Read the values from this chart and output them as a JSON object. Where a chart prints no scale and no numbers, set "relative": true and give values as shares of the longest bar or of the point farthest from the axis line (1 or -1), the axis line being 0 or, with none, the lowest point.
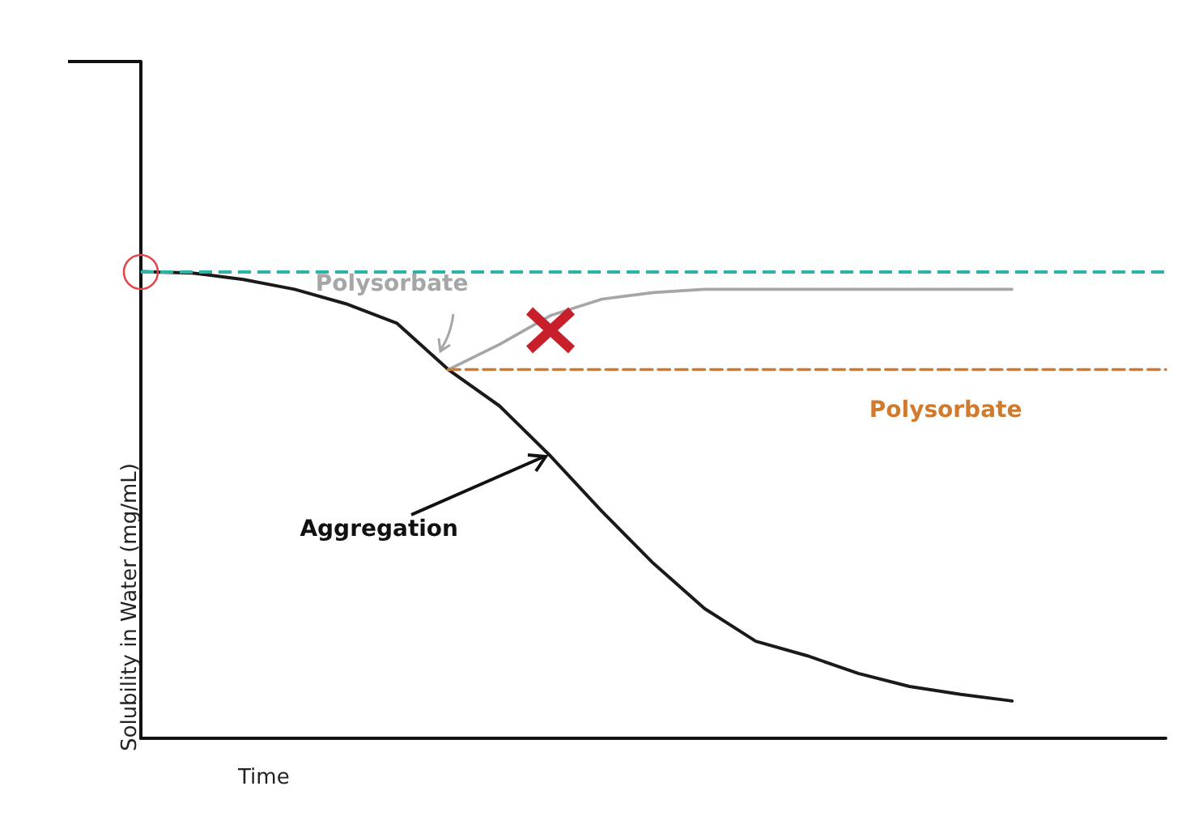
{
  "chart_data": {
    "type": "line",
    "relative": true,
    "xlabel": "Time",
    "ylabel": "Solubility in Water (mg/mL)",
    "categories": [
      null,
      null,
      null,
      null,
      null,
      null,
      null,
      null,
      null,
      null,
      null,
      null,
      null,
      null,
      null,
      null,
      null,
      null,
      null,
      null,
      null
    ],
    "series": [
      {
        "color": "#1a1a1a",
        "values": [
          1.0,
          0.997,
          0.983,
          0.962,
          0.931,
          0.889,
          0.79,
          0.712,
          0.604,
          0.486,
          0.375,
          0.278,
          0.208,
          0.177,
          0.139,
          0.111,
          0.094,
          0.08,
          null,
          null,
          null
        ]
      },
      {
        "name": "Polysorbate",
        "color": "#a6a6a6",
        "values": [
          null,
          null,
          null,
          null,
          null,
          null,
          0.79,
          0.844,
          0.906,
          0.941,
          0.955,
          0.962,
          0.962,
          0.962,
          0.962,
          0.962,
          0.962,
          0.962,
          null,
          null,
          null
        ]
      },
      {
        "name": "Polysorbate",
        "color": "#d07a2e",
        "line_style": "dashed",
        "values": [
          null,
          null,
          null,
          null,
          null,
          null,
          0.79,
          0.79,
          0.79,
          0.79,
          0.79,
          0.79,
          0.79,
          0.79,
          0.79,
          0.79,
          0.79,
          0.79,
          0.79,
          0.79,
          0.79
        ]
      }
    ],
    "ref_lines": [
      {
        "axis": "y",
        "value": 1.0,
        "color": "#2ab3a6",
        "line_style": "dashed"
      }
    ],
    "annotations": [
      "Aggregation"
    ],
    "grid": false,
    "legend": false,
    "marker": "none",
    "line_style": "solid"
  }
}
